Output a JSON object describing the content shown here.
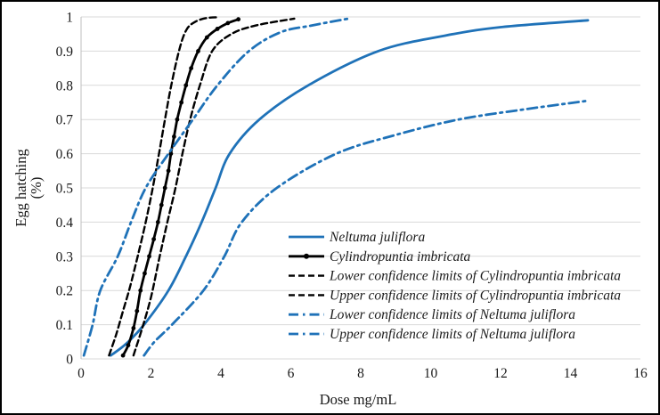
{
  "figure": {
    "background": "#ffffff",
    "border_color": "#000000"
  },
  "chart_data": {
    "type": "line",
    "title": "",
    "xlabel": "Dose mg/mL",
    "ylabel": "Egg hatching (%)",
    "ylabel_lines": [
      "Egg hatching",
      "(%)"
    ],
    "xlim": [
      0,
      16
    ],
    "ylim": [
      0,
      1
    ],
    "grid": "horizontal",
    "gridline_color": "#d9d9d9",
    "axis_line_color": "#bfbfbf",
    "text_color": "#1a1a1a",
    "legend_position": "inside-center-right",
    "xticks": [
      0,
      2,
      4,
      6,
      8,
      10,
      12,
      14,
      16
    ],
    "xtick_labels": [
      "0",
      "2",
      "4",
      "6",
      "8",
      "10",
      "12",
      "14",
      "16"
    ],
    "yticks": [
      0,
      0.1,
      0.2,
      0.3,
      0.4,
      0.5,
      0.6,
      0.7,
      0.8,
      0.9,
      1
    ],
    "ytick_labels": [
      "0",
      "0.1",
      "0.2",
      "0.3",
      "0.4",
      "0.5",
      "0.6",
      "0.7",
      "0.8",
      "0.9",
      "1"
    ],
    "series": [
      {
        "name": "Neltuma juliflora",
        "color": "#1f72b8",
        "style": "solid",
        "width": 2.8,
        "markers": false,
        "points": [
          [
            0.85,
            0.01
          ],
          [
            1.3,
            0.045
          ],
          [
            1.8,
            0.1
          ],
          [
            2.5,
            0.2
          ],
          [
            3.0,
            0.3
          ],
          [
            3.45,
            0.4
          ],
          [
            3.85,
            0.5
          ],
          [
            4.25,
            0.6
          ],
          [
            5.1,
            0.7
          ],
          [
            6.5,
            0.8
          ],
          [
            8.5,
            0.9
          ],
          [
            10.4,
            0.945
          ],
          [
            12.0,
            0.97
          ],
          [
            14.5,
            0.99
          ]
        ]
      },
      {
        "name": "Cylindropuntia imbricata",
        "color": "#000000",
        "style": "solid",
        "width": 2.8,
        "markers": true,
        "points": [
          [
            1.2,
            0.01
          ],
          [
            1.35,
            0.04
          ],
          [
            1.5,
            0.09
          ],
          [
            1.6,
            0.14
          ],
          [
            1.7,
            0.2
          ],
          [
            1.82,
            0.25
          ],
          [
            1.95,
            0.3
          ],
          [
            2.08,
            0.35
          ],
          [
            2.2,
            0.4
          ],
          [
            2.3,
            0.45
          ],
          [
            2.4,
            0.5
          ],
          [
            2.5,
            0.55
          ],
          [
            2.57,
            0.6
          ],
          [
            2.66,
            0.65
          ],
          [
            2.75,
            0.7
          ],
          [
            2.87,
            0.75
          ],
          [
            3.0,
            0.8
          ],
          [
            3.15,
            0.85
          ],
          [
            3.35,
            0.9
          ],
          [
            3.6,
            0.94
          ],
          [
            3.9,
            0.965
          ],
          [
            4.2,
            0.982
          ],
          [
            4.5,
            0.993
          ]
        ]
      },
      {
        "name": "Lower confidence limits of Cylindropuntia imbricata",
        "color": "#000000",
        "style": "dashed",
        "width": 2.4,
        "markers": false,
        "points": [
          [
            0.8,
            0.01
          ],
          [
            1.0,
            0.07
          ],
          [
            1.2,
            0.14
          ],
          [
            1.4,
            0.21
          ],
          [
            1.62,
            0.3
          ],
          [
            1.85,
            0.4
          ],
          [
            2.05,
            0.5
          ],
          [
            2.23,
            0.6
          ],
          [
            2.4,
            0.7
          ],
          [
            2.58,
            0.8
          ],
          [
            2.8,
            0.9
          ],
          [
            3.0,
            0.96
          ],
          [
            3.25,
            0.985
          ],
          [
            3.6,
            0.997
          ],
          [
            3.95,
            0.999
          ]
        ]
      },
      {
        "name": "Upper confidence limits of Cylindropuntia imbricata",
        "color": "#000000",
        "style": "dashed",
        "width": 2.4,
        "markers": false,
        "points": [
          [
            1.5,
            0.01
          ],
          [
            1.75,
            0.09
          ],
          [
            2.0,
            0.18
          ],
          [
            2.25,
            0.3
          ],
          [
            2.47,
            0.4
          ],
          [
            2.7,
            0.5
          ],
          [
            2.9,
            0.6
          ],
          [
            3.12,
            0.7
          ],
          [
            3.4,
            0.8
          ],
          [
            3.75,
            0.9
          ],
          [
            4.3,
            0.95
          ],
          [
            5.0,
            0.975
          ],
          [
            6.1,
            0.995
          ]
        ]
      },
      {
        "name": "Lower confidence limits of Neltuma juliflora",
        "color": "#1f72b8",
        "style": "dashdot",
        "width": 2.8,
        "markers": false,
        "points": [
          [
            1.8,
            0.01
          ],
          [
            2.1,
            0.05
          ],
          [
            2.6,
            0.1
          ],
          [
            3.5,
            0.2
          ],
          [
            4.1,
            0.3
          ],
          [
            4.6,
            0.4
          ],
          [
            5.6,
            0.5
          ],
          [
            7.3,
            0.6
          ],
          [
            9.0,
            0.655
          ],
          [
            10.8,
            0.7
          ],
          [
            12.7,
            0.73
          ],
          [
            14.5,
            0.755
          ]
        ]
      },
      {
        "name": "Upper confidence limits of Neltuma juliflora",
        "color": "#1f72b8",
        "style": "dashdot",
        "width": 2.8,
        "markers": false,
        "points": [
          [
            0.08,
            0.01
          ],
          [
            0.33,
            0.1
          ],
          [
            0.55,
            0.2
          ],
          [
            1.05,
            0.3
          ],
          [
            1.43,
            0.4
          ],
          [
            1.85,
            0.5
          ],
          [
            2.5,
            0.6
          ],
          [
            3.2,
            0.7
          ],
          [
            3.9,
            0.8
          ],
          [
            4.8,
            0.9
          ],
          [
            5.7,
            0.955
          ],
          [
            6.6,
            0.975
          ],
          [
            7.65,
            0.995
          ]
        ]
      }
    ]
  }
}
